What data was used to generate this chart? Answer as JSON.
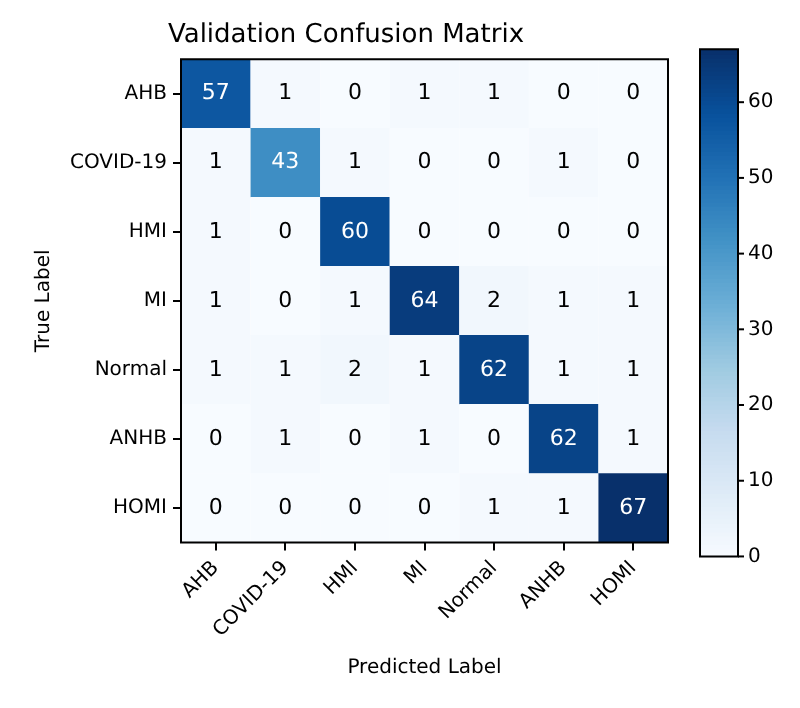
{
  "chart_data": {
    "type": "heatmap",
    "title": "Validation Confusion Matrix",
    "xlabel": "Predicted Label",
    "ylabel": "True Label",
    "categories": [
      "AHB",
      "COVID-19",
      "HMI",
      "MI",
      "Normal",
      "ANHB",
      "HOMI"
    ],
    "y_categories": [
      "AHB",
      "COVID-19",
      "HMI",
      "MI",
      "Normal",
      "ANHB",
      "HOMI"
    ],
    "cells": [
      [
        57,
        1,
        0,
        1,
        1,
        0,
        0
      ],
      [
        1,
        43,
        1,
        0,
        0,
        1,
        0
      ],
      [
        1,
        0,
        60,
        0,
        0,
        0,
        0
      ],
      [
        1,
        0,
        1,
        64,
        2,
        1,
        1
      ],
      [
        1,
        1,
        2,
        1,
        62,
        1,
        1
      ],
      [
        0,
        1,
        0,
        1,
        0,
        62,
        1
      ],
      [
        0,
        0,
        0,
        0,
        1,
        1,
        67
      ]
    ],
    "clim": [
      0,
      67
    ],
    "cticks": [
      0,
      10,
      20,
      30,
      40,
      50,
      60
    ],
    "data_labels": true
  }
}
